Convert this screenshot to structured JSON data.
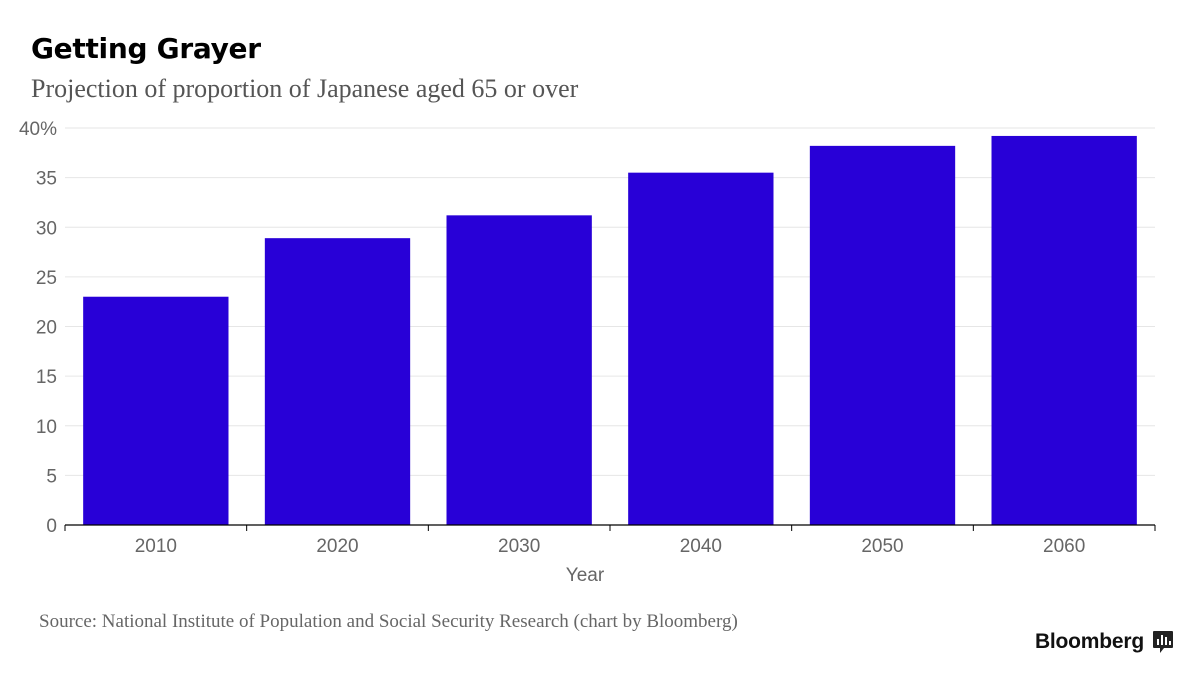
{
  "header": {
    "title": "Getting Grayer",
    "subtitle": "Projection of proportion of Japanese aged 65 or over"
  },
  "footer": {
    "source": "Source: National Institute of Population and Social Security Research (chart by Bloomberg)",
    "brand": "Bloomberg",
    "brand_icon": "bloomberg-chart-icon"
  },
  "chart_data": {
    "type": "bar",
    "title": "Getting Grayer",
    "subtitle": "Projection of proportion of Japanese aged 65 or over",
    "xlabel": "Year",
    "ylabel": "",
    "categories": [
      "2010",
      "2020",
      "2030",
      "2040",
      "2050",
      "2060"
    ],
    "values": [
      23.0,
      28.9,
      31.2,
      35.5,
      38.2,
      39.2
    ],
    "ylim": [
      0,
      40
    ],
    "y_ticks": [
      0,
      5,
      10,
      15,
      20,
      25,
      30,
      35,
      40
    ],
    "y_tick_labels": [
      "0",
      "5",
      "10",
      "15",
      "20",
      "25",
      "30",
      "35",
      "40%"
    ],
    "grid": true,
    "legend": "none",
    "colors": {
      "bar": "#2800d7",
      "grid": "#e6e6e6",
      "axis": "#000000",
      "tick_label": "#666666"
    }
  }
}
